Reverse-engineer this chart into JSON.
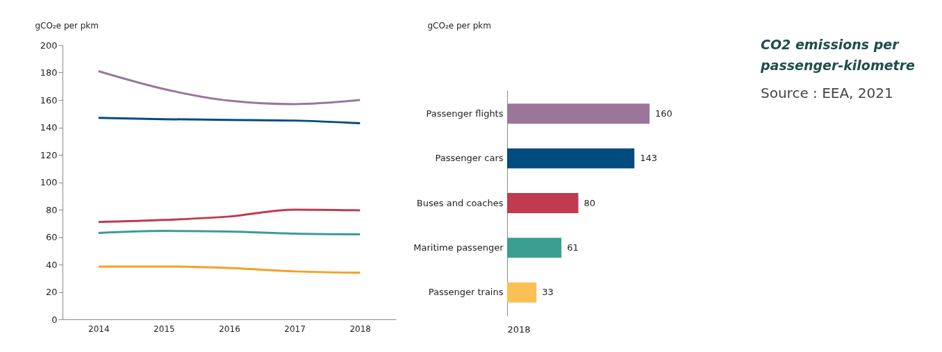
{
  "chart_data": [
    {
      "type": "line",
      "ylabel": "gCO₂e per pkm",
      "categories": [
        "2014",
        "2015",
        "2016",
        "2017",
        "2018"
      ],
      "ylim": [
        0,
        200
      ],
      "yticks": [
        0,
        20,
        40,
        60,
        80,
        100,
        120,
        140,
        160,
        180,
        200
      ],
      "grid": false,
      "series": [
        {
          "color": "#9b769a",
          "values": [
            181,
            168,
            159.5,
            157,
            160
          ]
        },
        {
          "color": "#004b7f",
          "values": [
            147,
            146,
            145.5,
            145,
            143
          ]
        },
        {
          "color": "#c03a50",
          "values": [
            71,
            72.5,
            75,
            80,
            79.5
          ]
        },
        {
          "color": "#3a9e90",
          "values": [
            63,
            64.5,
            64,
            62.5,
            62
          ]
        },
        {
          "color": "#f4a024",
          "values": [
            38.5,
            38.5,
            37.5,
            35,
            34
          ]
        }
      ]
    },
    {
      "type": "bar",
      "orientation": "horizontal",
      "ylabel": "gCO₂e per pkm",
      "xlabel": "2018",
      "categories": [
        "Passenger flights",
        "Passenger cars",
        "Buses and coaches",
        "Maritime passenger",
        "Passenger trains"
      ],
      "values": [
        160,
        143,
        80,
        61,
        33
      ],
      "colors": [
        "#9b769a",
        "#004b7f",
        "#c03a50",
        "#3a9e90",
        "#f9c055"
      ],
      "data_labels": true
    },
    {
      "type": "other",
      "title": "CO2 emissions per passenger-kilometre",
      "annotations": [
        "Source : EEA, 2021"
      ]
    }
  ]
}
